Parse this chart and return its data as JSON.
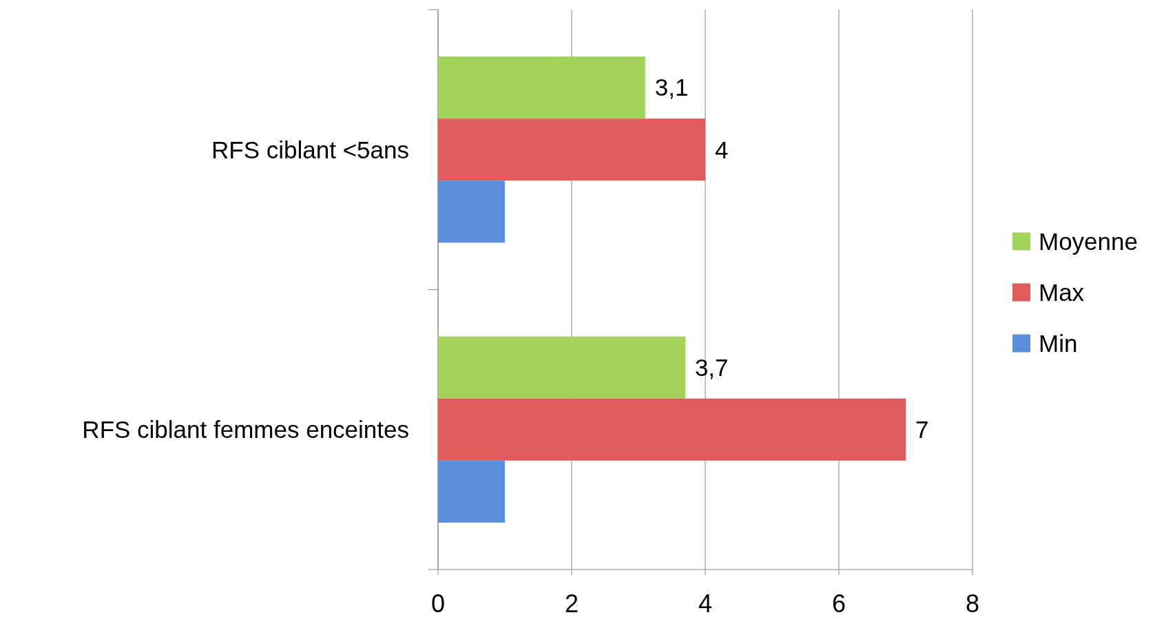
{
  "chart_data": {
    "type": "bar",
    "orientation": "horizontal",
    "categories": [
      "RFS ciblant <5ans",
      "RFS ciblant femmes enceintes"
    ],
    "series": [
      {
        "name": "Moyenne",
        "color": "#a5d25a",
        "values": [
          3.1,
          3.7
        ],
        "value_labels": [
          "3,1",
          "3,7"
        ]
      },
      {
        "name": "Max",
        "color": "#e05c5c",
        "values": [
          4,
          7
        ],
        "value_labels": [
          "4",
          "7"
        ]
      },
      {
        "name": "Min",
        "color": "#5b8fdc",
        "values": [
          1,
          1
        ],
        "value_labels": [
          null,
          null
        ]
      }
    ],
    "xlim": [
      0,
      8
    ],
    "xticks": [
      0,
      2,
      4,
      6,
      8
    ],
    "grid": "x",
    "legend": "right"
  }
}
